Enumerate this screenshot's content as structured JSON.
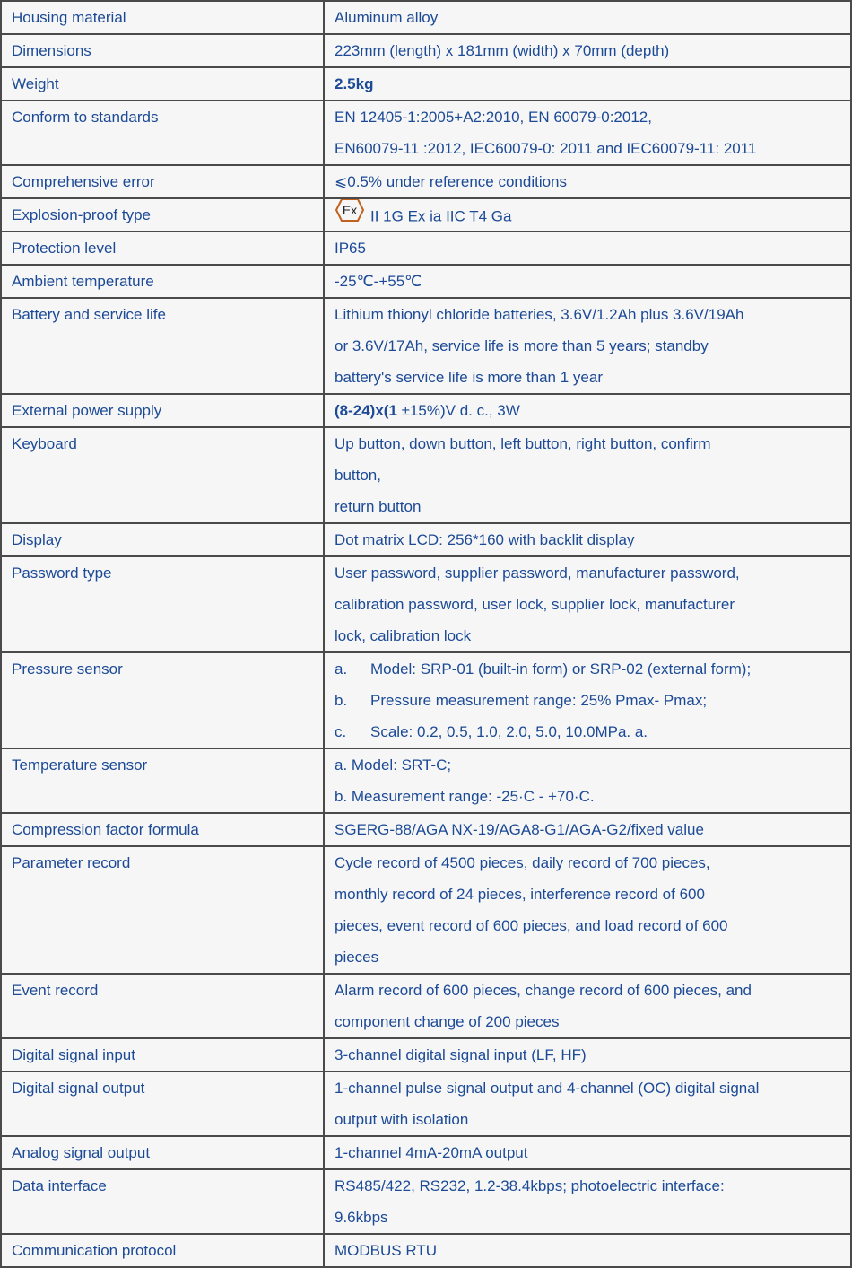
{
  "colors": {
    "text": "#1c4a96",
    "border": "#4a4a4a",
    "background": "#f6f6f6",
    "ex_mark": "#c0621e"
  },
  "rows": [
    {
      "label": "Housing material",
      "lines": [
        [
          {
            "t": "Aluminum alloy"
          }
        ]
      ]
    },
    {
      "label": "Dimensions",
      "lines": [
        [
          {
            "t": "223mm (length) x 181mm (width) x 70mm (depth)"
          }
        ]
      ]
    },
    {
      "label": "Weight",
      "lines": [
        [
          {
            "t": "2.5kg",
            "bold": true
          }
        ]
      ]
    },
    {
      "label": "Conform to standards",
      "lines": [
        [
          {
            "t": "EN 12405-1:2005+A2:2010, EN 60079-0:2012,"
          }
        ],
        [
          {
            "t": "EN60079-11 :2012, IEC60079-0: 2011 and IEC60079-11: 2011"
          }
        ]
      ]
    },
    {
      "label": "Comprehensive error",
      "lines": [
        [
          {
            "t": "⩽0.5% under reference conditions"
          }
        ]
      ]
    },
    {
      "label": "Explosion-proof type",
      "lines": [
        [
          {
            "icon": "ex-mark-icon",
            "text": "Ex"
          },
          {
            "t": "II 1G Ex ia IIC T4 Ga"
          }
        ]
      ]
    },
    {
      "label": "Protection level",
      "lines": [
        [
          {
            "t": "IP65"
          }
        ]
      ]
    },
    {
      "label": "Ambient temperature",
      "lines": [
        [
          {
            "t": "-25℃-+55℃"
          }
        ]
      ]
    },
    {
      "label": "Battery and service life",
      "lines": [
        [
          {
            "t": "Lithium thionyl chloride batteries, 3.6V/1.2Ah plus 3.6V/19Ah"
          }
        ],
        [
          {
            "t": "or 3.6V/17Ah, service life is more than 5 years; standby"
          }
        ],
        [
          {
            "t": "battery's service life is more than 1 year"
          }
        ]
      ]
    },
    {
      "label": "External power supply",
      "lines": [
        [
          {
            "t": "(8-24)x(1",
            "bold": true
          },
          {
            "t": " ±15%)V d. c., 3W"
          }
        ]
      ]
    },
    {
      "label": "Keyboard",
      "lines": [
        [
          {
            "t": "Up button, down button, left button, right button, confirm"
          }
        ],
        [
          {
            "t": "button,"
          }
        ],
        [
          {
            "t": "return button"
          }
        ]
      ]
    },
    {
      "label": "Display",
      "lines": [
        [
          {
            "t": "Dot matrix LCD: 256*160 with backlit display"
          }
        ]
      ]
    },
    {
      "label": "Password type",
      "lines": [
        [
          {
            "t": "User password, supplier password, manufacturer password,"
          }
        ],
        [
          {
            "t": "calibration password, user lock, supplier lock, manufacturer"
          }
        ],
        [
          {
            "t": "lock, calibration lock"
          }
        ]
      ]
    },
    {
      "label": "Pressure sensor",
      "lines": [
        [
          {
            "marker": "a."
          },
          {
            "t": "Model: SRP-01 (built-in form) or SRP-02 (external form);"
          }
        ],
        [
          {
            "marker": "b."
          },
          {
            "t": "Pressure measurement range: 25% Pmax- Pmax;"
          }
        ],
        [
          {
            "marker": "c."
          },
          {
            "t": "Scale: 0.2, 0.5, 1.0, 2.0, 5.0, 10.0MPa. a."
          }
        ]
      ]
    },
    {
      "label": "Temperature sensor",
      "lines": [
        [
          {
            "t": "a. Model: SRT-C;"
          }
        ],
        [
          {
            "t": "b. Measurement range: -25·C - +70·C."
          }
        ]
      ]
    },
    {
      "label": "Compression factor formula",
      "lines": [
        [
          {
            "t": "SGERG-88/AGA NX-19/AGA8-G1/AGA-G2/fixed value"
          }
        ]
      ]
    },
    {
      "label": "Parameter record",
      "lines": [
        [
          {
            "t": "Cycle record of 4500 pieces, daily record of 700 pieces,"
          }
        ],
        [
          {
            "t": "monthly record of 24 pieces, interference record of 600"
          }
        ],
        [
          {
            "t": "pieces, event record of 600 pieces, and load record of 600"
          }
        ],
        [
          {
            "t": "pieces"
          }
        ]
      ]
    },
    {
      "label": "Event record",
      "lines": [
        [
          {
            "t": "Alarm record of 600 pieces, change record of 600 pieces, and"
          }
        ],
        [
          {
            "t": "component change of 200 pieces"
          }
        ]
      ]
    },
    {
      "label": "Digital signal input",
      "lines": [
        [
          {
            "t": "3-channel digital signal input (LF, HF)"
          }
        ]
      ]
    },
    {
      "label": "Digital signal output",
      "lines": [
        [
          {
            "t": "1-channel pulse signal output and 4-channel (OC) digital signal"
          }
        ],
        [
          {
            "t": "output with isolation"
          }
        ]
      ]
    },
    {
      "label": "Analog signal output",
      "lines": [
        [
          {
            "t": "1-channel 4mA-20mA output"
          }
        ]
      ]
    },
    {
      "label": "Data interface",
      "lines": [
        [
          {
            "t": "RS485/422, RS232, 1.2-38.4kbps; photoelectric interface:"
          }
        ],
        [
          {
            "t": "9.6kbps"
          }
        ]
      ]
    },
    {
      "label": "Communication protocol",
      "lines": [
        [
          {
            "t": "MODBUS RTU"
          }
        ]
      ]
    }
  ]
}
